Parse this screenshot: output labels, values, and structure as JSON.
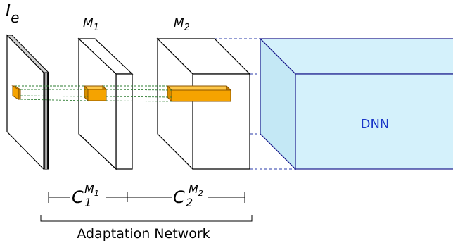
{
  "labels": {
    "input_main": "I",
    "input_sub": "e",
    "m1_main": "M",
    "m1_sub": "1",
    "m2_main": "M",
    "m2_sub": "2",
    "dnn": "DNN",
    "c1_main": "C",
    "c1_sub": "1",
    "c1_sup_main": "M",
    "c1_sup_sub": "1",
    "c2_main": "C",
    "c2_sub": "2",
    "c2_sup_main": "M",
    "c2_sup_sub": "2",
    "adaptation_network": "Adaptation Network"
  },
  "colors": {
    "dnn_fill": "#d4f1fb",
    "dnn_stroke": "#1a1a8c",
    "dnn_text": "#1a35c8",
    "kernel_fill": "#f5a300",
    "kernel_stroke": "#8a5500",
    "connector": "#2e7d32",
    "dashed_blue": "#2a3aa8"
  }
}
